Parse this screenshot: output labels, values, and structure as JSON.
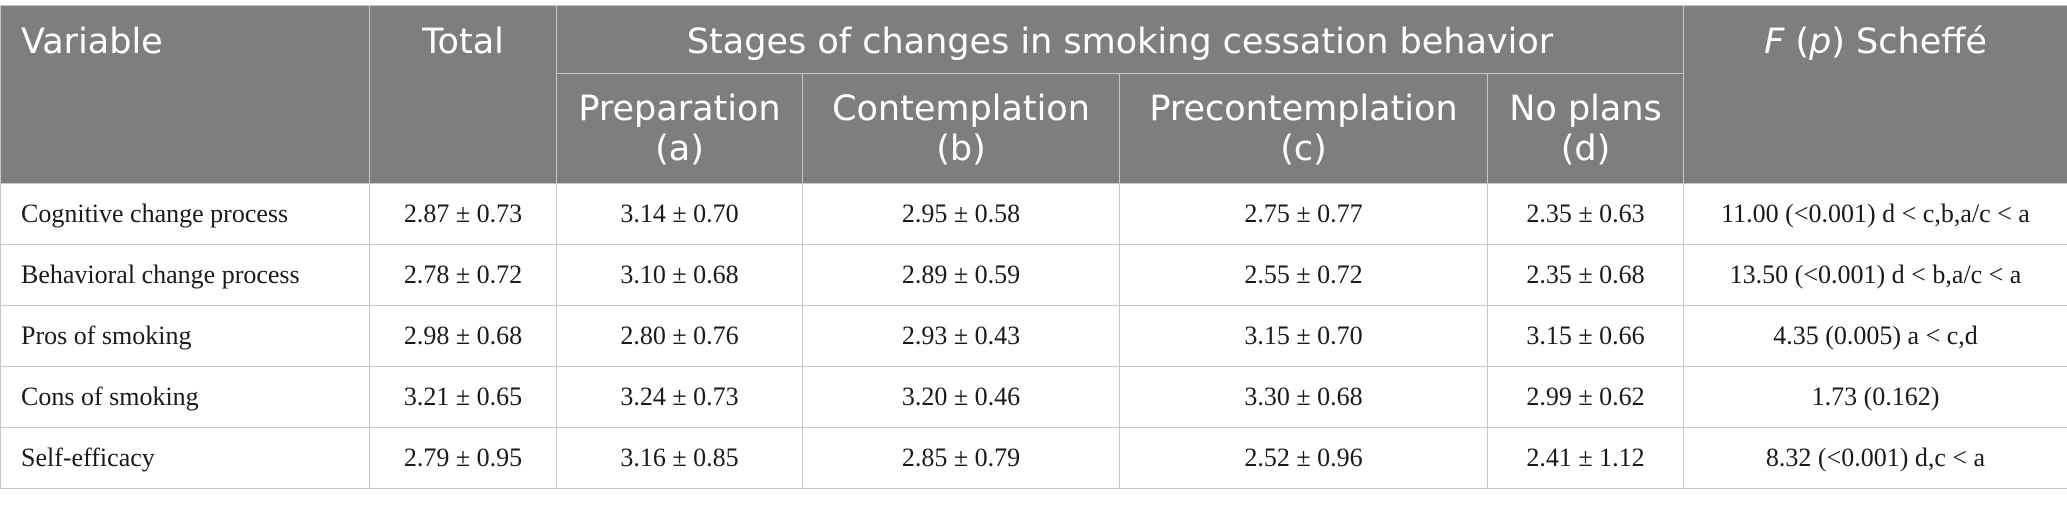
{
  "header": {
    "variable": "Variable",
    "total": "Total",
    "group": "Stages of changes in smoking cessation behavior",
    "fp_f": "F",
    "fp_open": " (",
    "fp_p": "p",
    "fp_rest": ") Scheffé",
    "stages": [
      {
        "name": "Preparation",
        "letter": "(a)"
      },
      {
        "name": "Contemplation",
        "letter": "(b)"
      },
      {
        "name": "Precontemplation",
        "letter": "(c)"
      },
      {
        "name": "No plans",
        "letter": "(d)"
      }
    ]
  },
  "rows": [
    {
      "variable": "Cognitive change process",
      "total": "2.87 ± 0.73",
      "a": "3.14 ± 0.70",
      "b": "2.95 ± 0.58",
      "c": "2.75 ± 0.77",
      "d": "2.35 ± 0.63",
      "fp": "11.00 (<0.001) d < c,b,a/c < a"
    },
    {
      "variable": "Behavioral change process",
      "total": "2.78 ± 0.72",
      "a": "3.10 ± 0.68",
      "b": "2.89 ± 0.59",
      "c": "2.55 ± 0.72",
      "d": "2.35 ± 0.68",
      "fp": "13.50 (<0.001) d < b,a/c < a"
    },
    {
      "variable": "Pros of smoking",
      "total": "2.98 ± 0.68",
      "a": "2.80 ± 0.76",
      "b": "2.93 ± 0.43",
      "c": "3.15 ± 0.70",
      "d": "3.15 ± 0.66",
      "fp": "4.35 (0.005) a < c,d"
    },
    {
      "variable": "Cons of smoking",
      "total": "3.21 ± 0.65",
      "a": "3.24 ± 0.73",
      "b": "3.20 ± 0.46",
      "c": "3.30 ± 0.68",
      "d": "2.99 ± 0.62",
      "fp": "1.73 (0.162)"
    },
    {
      "variable": "Self-efficacy",
      "total": "2.79 ± 0.95",
      "a": "3.16 ± 0.85",
      "b": "2.85 ± 0.79",
      "c": "2.52 ± 0.96",
      "d": "2.41 ± 1.12",
      "fp": "8.32 (<0.001) d,c < a"
    }
  ]
}
